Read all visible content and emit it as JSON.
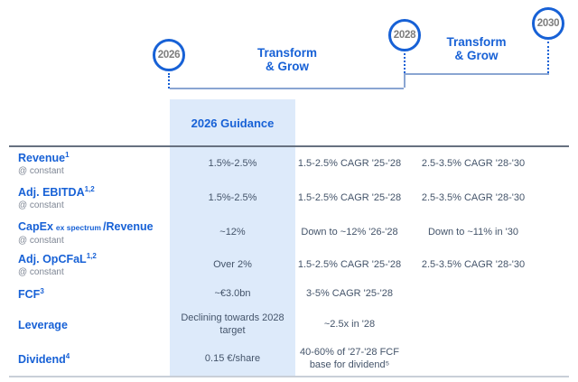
{
  "colors": {
    "accent_blue": "#1761d6",
    "bracket_steel_blue": "#8aa5d2",
    "value_slate": "#44546a",
    "guidance_column_bg": "#ddeafa",
    "year_gray": "#7d7d7d"
  },
  "timeline": {
    "years": [
      "2026",
      "2028",
      "2030"
    ],
    "phases": [
      {
        "line1": "Transform",
        "line2": "& Grow"
      },
      {
        "line1": "Transform",
        "line2": "& Grow"
      }
    ]
  },
  "column_header": "2026 Guidance",
  "table": {
    "rows": [
      {
        "label": "Revenue",
        "sup": "1",
        "note": "@ constant",
        "guidance": "1.5%-2.5%",
        "mid": "1.5-2.5% CAGR '25-'28",
        "long": "2.5-3.5% CAGR '28-'30"
      },
      {
        "label": "Adj. EBITDA",
        "sup": "1,2",
        "note": "@ constant",
        "guidance": "1.5%-2.5%",
        "mid": "1.5-2.5% CAGR '25-'28",
        "long": "2.5-3.5% CAGR '28-'30"
      },
      {
        "label": "CapEx",
        "label_small": "ex spectrum",
        "label2": "/Revenue",
        "note": "@ constant",
        "guidance": "~12%",
        "mid": "Down to ~12% '26-'28",
        "long": "Down to ~11% in '30"
      },
      {
        "label": "Adj. OpCFaL",
        "sup": "1,2",
        "note": "@ constant",
        "guidance": "Over 2%",
        "mid": "1.5-2.5% CAGR '25-'28",
        "long": "2.5-3.5% CAGR '28-'30"
      },
      {
        "label": "FCF",
        "sup": "3",
        "guidance": "~€3.0bn",
        "mid": "3-5% CAGR '25-'28",
        "long": ""
      },
      {
        "label": "Leverage",
        "guidance": "Declining towards 2028\ntarget",
        "mid": "~2.5x in '28",
        "long": ""
      },
      {
        "label": "Dividend",
        "sup": "4",
        "guidance": "0.15 €/share",
        "mid": "40-60% of '27-'28 FCF\nbase for dividend⁵",
        "long": ""
      }
    ]
  }
}
